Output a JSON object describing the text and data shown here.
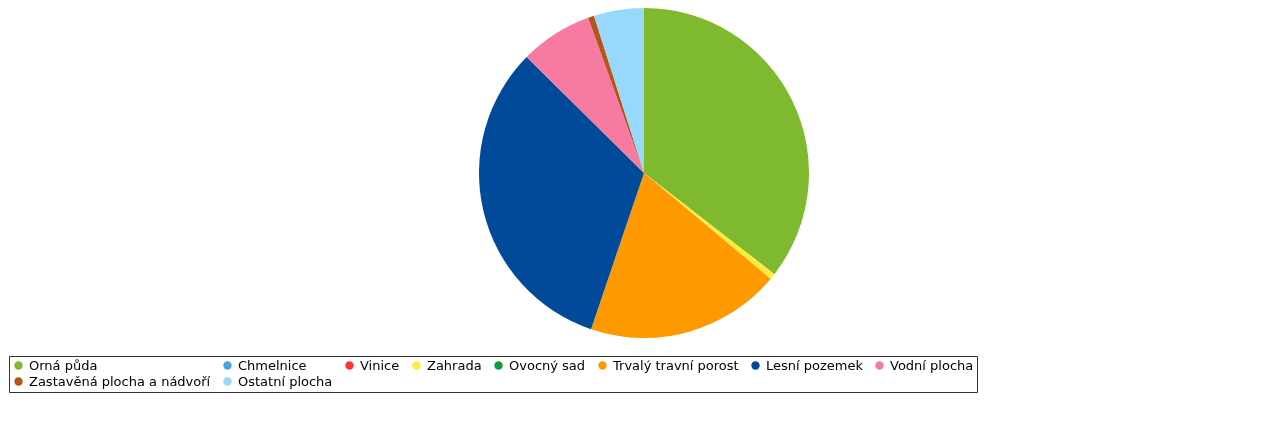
{
  "chart_data": {
    "type": "pie",
    "categories": [
      "Orná půda",
      "Chmelnice",
      "Vinice",
      "Zahrada",
      "Ovocný sad",
      "Trvalý travní porost",
      "Lesní pozemek",
      "Vodní plocha",
      "Zastavěná plocha a nádvoří",
      "Ostatní plocha"
    ],
    "values": [
      35.5,
      0,
      0,
      0.6,
      0,
      19.1,
      32.2,
      7.1,
      0.6,
      4.9
    ],
    "colors": [
      "#7fba2e",
      "#4aa3df",
      "#ff3333",
      "#ffeb3b",
      "#0f9a3c",
      "#ff9900",
      "#004a99",
      "#f77ba0",
      "#b5541b",
      "#96d9fb"
    ],
    "legend": "bottom"
  }
}
